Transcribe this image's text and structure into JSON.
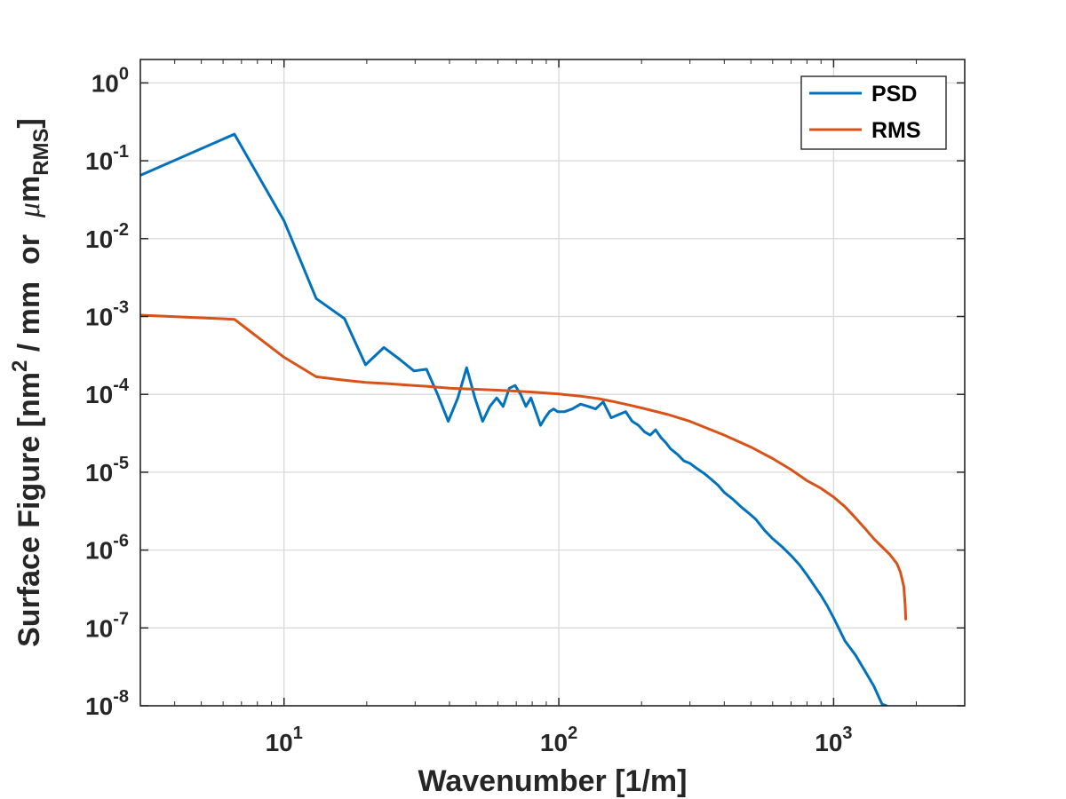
{
  "chart_data": {
    "type": "line",
    "xscale": "log",
    "yscale": "log",
    "xlim": [
      3,
      3000
    ],
    "ylim": [
      1e-08,
      2
    ],
    "grid": true,
    "legend_position": "top-right",
    "xlabel": "Wavenumber [1/m]",
    "ylabel": {
      "prefix": "Surface Figure [nm",
      "sup": "2",
      "middle": " / mm  or  ",
      "mu": "μ",
      "m": "m",
      "sub": "RMS",
      "suffix": "]"
    },
    "x_ticks": [
      {
        "value": 10,
        "base": "10",
        "exp": "1"
      },
      {
        "value": 100,
        "base": "10",
        "exp": "2"
      },
      {
        "value": 1000,
        "base": "10",
        "exp": "3"
      }
    ],
    "y_ticks": [
      {
        "value": 1,
        "base": "10",
        "exp": "0"
      },
      {
        "value": 0.1,
        "base": "10",
        "exp": "-1"
      },
      {
        "value": 0.01,
        "base": "10",
        "exp": "-2"
      },
      {
        "value": 0.001,
        "base": "10",
        "exp": "-3"
      },
      {
        "value": 0.0001,
        "base": "10",
        "exp": "-4"
      },
      {
        "value": 1e-05,
        "base": "10",
        "exp": "-5"
      },
      {
        "value": 1e-06,
        "base": "10",
        "exp": "-6"
      },
      {
        "value": 1e-07,
        "base": "10",
        "exp": "-7"
      },
      {
        "value": 1e-08,
        "base": "10",
        "exp": "-8"
      }
    ],
    "series": [
      {
        "name": "PSD",
        "color": "#0072BD",
        "points": [
          [
            3.0,
            0.065
          ],
          [
            6.6,
            0.22
          ],
          [
            10.0,
            0.017
          ],
          [
            13.1,
            0.0017
          ],
          [
            16.6,
            0.00094
          ],
          [
            19.8,
            0.00024
          ],
          [
            23.1,
            0.0004
          ],
          [
            26.4,
            0.00028
          ],
          [
            29.7,
            0.0002
          ],
          [
            33.0,
            0.00021
          ],
          [
            36.2,
            0.0001
          ],
          [
            39.6,
            4.5e-05
          ],
          [
            42.9,
            9e-05
          ],
          [
            46.2,
            0.00022
          ],
          [
            49.5,
            9e-05
          ],
          [
            52.8,
            4.5e-05
          ],
          [
            56.1,
            7e-05
          ],
          [
            59.4,
            9e-05
          ],
          [
            62.7,
            7e-05
          ],
          [
            66.0,
            0.00012
          ],
          [
            69.3,
            0.00013
          ],
          [
            72.6,
            0.0001
          ],
          [
            75.9,
            7e-05
          ],
          [
            79.2,
            9e-05
          ],
          [
            82.5,
            6e-05
          ],
          [
            85.8,
            4e-05
          ],
          [
            89.1,
            5e-05
          ],
          [
            92.4,
            6e-05
          ],
          [
            95.7,
            6.5e-05
          ],
          [
            99.0,
            6e-05
          ],
          [
            105,
            6e-05
          ],
          [
            112,
            6.5e-05
          ],
          [
            120,
            7.5e-05
          ],
          [
            128,
            7e-05
          ],
          [
            136,
            6.5e-05
          ],
          [
            145,
            8e-05
          ],
          [
            155,
            5e-05
          ],
          [
            165,
            5.5e-05
          ],
          [
            175,
            6e-05
          ],
          [
            185,
            4.5e-05
          ],
          [
            195,
            4e-05
          ],
          [
            205,
            3.3e-05
          ],
          [
            215,
            3e-05
          ],
          [
            225,
            3.5e-05
          ],
          [
            235,
            2.8e-05
          ],
          [
            245,
            2.4e-05
          ],
          [
            255,
            2e-05
          ],
          [
            270,
            1.7e-05
          ],
          [
            285,
            1.4e-05
          ],
          [
            300,
            1.3e-05
          ],
          [
            320,
            1.1e-05
          ],
          [
            340,
            9.5e-06
          ],
          [
            360,
            8e-06
          ],
          [
            380,
            6.8e-06
          ],
          [
            400,
            5.5e-06
          ],
          [
            430,
            4.5e-06
          ],
          [
            460,
            3.6e-06
          ],
          [
            490,
            3e-06
          ],
          [
            520,
            2.5e-06
          ],
          [
            560,
            1.8e-06
          ],
          [
            600,
            1.4e-06
          ],
          [
            650,
            1.1e-06
          ],
          [
            700,
            8.5e-07
          ],
          [
            750,
            6.5e-07
          ],
          [
            800,
            4.8e-07
          ],
          [
            850,
            3.5e-07
          ],
          [
            900,
            2.6e-07
          ],
          [
            950,
            1.9e-07
          ],
          [
            1000,
            1.35e-07
          ],
          [
            1050,
            9.5e-08
          ],
          [
            1100,
            6.8e-08
          ],
          [
            1200,
            4.5e-08
          ],
          [
            1300,
            2.8e-08
          ],
          [
            1400,
            1.8e-08
          ],
          [
            1500,
            1.05e-08
          ],
          [
            1560,
            1e-08
          ]
        ]
      },
      {
        "name": "RMS",
        "color": "#D95319",
        "points": [
          [
            3.0,
            0.00104
          ],
          [
            6.6,
            0.00092
          ],
          [
            10.0,
            0.0003
          ],
          [
            13.1,
            0.000168
          ],
          [
            16.6,
            0.000152
          ],
          [
            19.8,
            0.000142
          ],
          [
            23.1,
            0.000138
          ],
          [
            26.4,
            0.000134
          ],
          [
            29.7,
            0.00013
          ],
          [
            33.0,
            0.000127
          ],
          [
            40,
            0.00012
          ],
          [
            50,
            0.000116
          ],
          [
            60,
            0.000113
          ],
          [
            70,
            0.00011
          ],
          [
            80,
            0.000107
          ],
          [
            90,
            0.000104
          ],
          [
            100,
            0.000101
          ],
          [
            120,
            9.5e-05
          ],
          [
            140,
            8.8e-05
          ],
          [
            160,
            8e-05
          ],
          [
            180,
            7.3e-05
          ],
          [
            200,
            6.7e-05
          ],
          [
            250,
            5.5e-05
          ],
          [
            300,
            4.5e-05
          ],
          [
            400,
            3e-05
          ],
          [
            500,
            2.1e-05
          ],
          [
            600,
            1.5e-05
          ],
          [
            700,
            1.08e-05
          ],
          [
            800,
            7.8e-06
          ],
          [
            900,
            6.2e-06
          ],
          [
            1000,
            4.8e-06
          ],
          [
            1100,
            3.6e-06
          ],
          [
            1200,
            2.6e-06
          ],
          [
            1300,
            1.9e-06
          ],
          [
            1400,
            1.4e-06
          ],
          [
            1500,
            1.1e-06
          ],
          [
            1600,
            8.8e-07
          ],
          [
            1700,
            6.7e-07
          ],
          [
            1750,
            5.2e-07
          ],
          [
            1800,
            3.4e-07
          ],
          [
            1820,
            2e-07
          ],
          [
            1830,
            1.3e-07
          ]
        ]
      }
    ]
  }
}
